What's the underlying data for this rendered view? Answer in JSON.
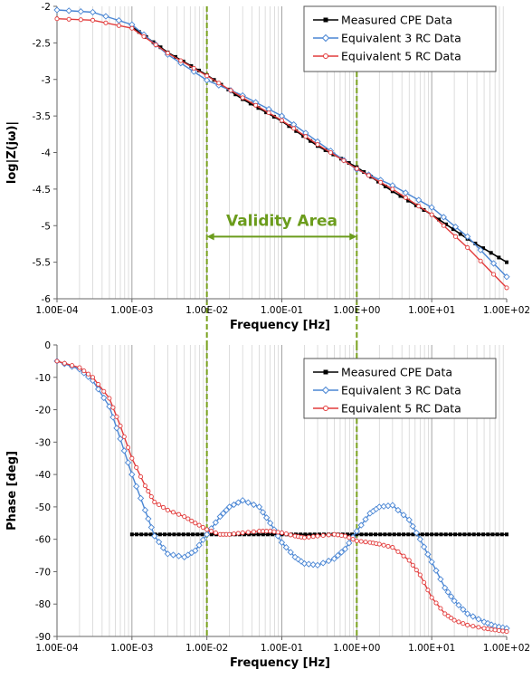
{
  "chart_data": [
    {
      "type": "line",
      "xscale": "log",
      "xlabel": "Frequency [Hz]",
      "ylabel": "log|Z(jω)|",
      "xlim": [
        0.0001,
        100
      ],
      "ylim": [
        -6,
        -2
      ],
      "x_tick_labels": [
        "1.00E-04",
        "1.00E-03",
        "1.00E-02",
        "1.00E-01",
        "1.00E+00",
        "1.00E+01",
        "1.00E+02"
      ],
      "y_tick_labels": [
        "-2",
        "-2.5",
        "-3",
        "-3.5",
        "-4",
        "-4.5",
        "-5",
        "-5.5",
        "-6"
      ],
      "grid": "x-minor-and-major",
      "legend_position": "top-right",
      "vertical_lines_at_x": [
        0.01,
        1
      ],
      "annotation": {
        "text": "Validity Area",
        "from_x": 0.01,
        "to_x": 1,
        "y": -5.15,
        "color": "#6b9c1c"
      },
      "series": [
        {
          "name": "Measured CPE Data",
          "color": "#000000",
          "x": [
            0.001,
            0.003,
            0.01,
            0.03,
            0.1,
            0.3,
            1,
            3,
            10,
            30,
            100
          ],
          "y": [
            -2.28,
            -2.63,
            -2.94,
            -3.27,
            -3.57,
            -3.91,
            -4.2,
            -4.53,
            -4.85,
            -5.18,
            -5.5
          ]
        },
        {
          "name": "Equivalent 3 RC Data",
          "color": "#4a86d4",
          "x": [
            0.0001,
            0.0003,
            0.001,
            0.003,
            0.01,
            0.03,
            0.1,
            0.3,
            1,
            3,
            10,
            30,
            100
          ],
          "y": [
            -2.05,
            -2.08,
            -2.25,
            -2.66,
            -3.01,
            -3.22,
            -3.5,
            -3.85,
            -4.23,
            -4.45,
            -4.75,
            -5.15,
            -5.7
          ]
        },
        {
          "name": "Equivalent 5 RC Data",
          "color": "#e23b3b",
          "x": [
            0.0001,
            0.0003,
            0.001,
            0.003,
            0.01,
            0.03,
            0.1,
            0.3,
            1,
            3,
            10,
            30,
            100
          ],
          "y": [
            -2.17,
            -2.19,
            -2.3,
            -2.64,
            -2.95,
            -3.25,
            -3.56,
            -3.89,
            -4.22,
            -4.5,
            -4.85,
            -5.3,
            -5.85
          ]
        }
      ]
    },
    {
      "type": "line",
      "xscale": "log",
      "xlabel": "Frequency [Hz]",
      "ylabel": "Phase [deg]",
      "xlim": [
        0.0001,
        100
      ],
      "ylim": [
        -90,
        0
      ],
      "x_tick_labels": [
        "1.00E-04",
        "1.00E-03",
        "1.00E-02",
        "1.00E-01",
        "1.00E+00",
        "1.00E+01",
        "1.00E+02"
      ],
      "y_tick_labels": [
        "0",
        "-10",
        "-20",
        "-30",
        "-40",
        "-50",
        "-60",
        "-70",
        "-80",
        "-90"
      ],
      "grid": "x-minor-and-major",
      "legend_position": "top-right",
      "vertical_lines_at_x": [
        0.01,
        1
      ],
      "series": [
        {
          "name": "Measured CPE Data",
          "color": "#000000",
          "x": [
            0.001,
            100
          ],
          "y": [
            -58.5,
            -58.5
          ]
        },
        {
          "name": "Equivalent 3 RC Data",
          "color": "#4a86d4",
          "x": [
            0.0001,
            0.0002,
            0.0003,
            0.0005,
            0.0007,
            0.001,
            0.0015,
            0.002,
            0.003,
            0.005,
            0.007,
            0.01,
            0.015,
            0.02,
            0.03,
            0.05,
            0.07,
            0.1,
            0.15,
            0.2,
            0.3,
            0.5,
            0.7,
            1,
            1.5,
            2,
            3,
            5,
            7,
            10,
            15,
            20,
            30,
            50,
            70,
            100
          ],
          "y": [
            -5,
            -7.5,
            -11,
            -19,
            -29,
            -40,
            -51,
            -59,
            -64.5,
            -65.5,
            -63.5,
            -58.5,
            -53,
            -50,
            -48,
            -50,
            -55,
            -61,
            -65.5,
            -67.5,
            -68,
            -66,
            -63,
            -57.5,
            -52,
            -50,
            -49.5,
            -54,
            -60,
            -67,
            -75,
            -79,
            -83,
            -85.5,
            -86.8,
            -87.5
          ]
        },
        {
          "name": "Equivalent 5 RC Data",
          "color": "#e23b3b",
          "x": [
            0.0001,
            0.0002,
            0.0003,
            0.0005,
            0.0007,
            0.001,
            0.0015,
            0.002,
            0.003,
            0.005,
            0.007,
            0.01,
            0.015,
            0.02,
            0.03,
            0.05,
            0.07,
            0.1,
            0.15,
            0.2,
            0.3,
            0.5,
            0.7,
            1,
            1.5,
            2,
            3,
            5,
            7,
            10,
            15,
            20,
            30,
            50,
            70,
            100
          ],
          "y": [
            -5,
            -7,
            -10,
            -16.5,
            -25,
            -35,
            -43.5,
            -48.5,
            -51,
            -53,
            -55,
            -57,
            -58.5,
            -58.5,
            -58,
            -57.5,
            -57.5,
            -58,
            -59,
            -59.5,
            -59,
            -58.5,
            -59,
            -60.5,
            -61,
            -61.5,
            -62.5,
            -66.5,
            -71,
            -78,
            -83,
            -85,
            -86.5,
            -87.5,
            -88,
            -88.5
          ]
        }
      ]
    }
  ]
}
